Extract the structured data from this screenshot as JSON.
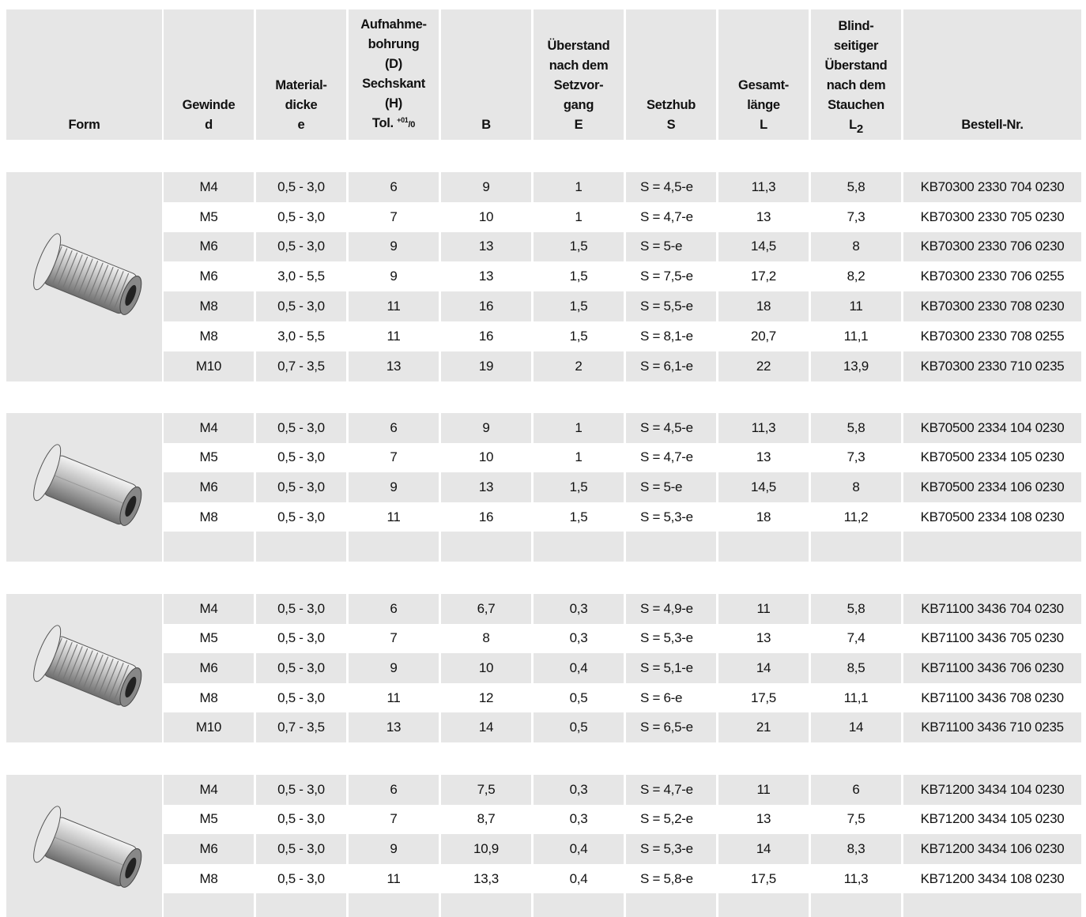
{
  "header": {
    "columns": [
      {
        "lines": [
          "Form"
        ]
      },
      {
        "lines": [
          "Gewinde",
          "d"
        ]
      },
      {
        "lines": [
          "Material-",
          "dicke",
          "e"
        ]
      },
      {
        "lines": [
          "Aufnahme-",
          "bohrung",
          "(D)",
          "Sechskant",
          "(H)",
          {
            "text": "Tol. ",
            "sup": "+01",
            "after": "/0"
          }
        ]
      },
      {
        "lines": [
          "B"
        ]
      },
      {
        "lines": [
          "Überstand",
          "nach dem",
          "Setzvor-",
          "gang",
          "E"
        ]
      },
      {
        "lines": [
          "Setzhub",
          "S"
        ]
      },
      {
        "lines": [
          "Gesamt-",
          "länge",
          "L"
        ]
      },
      {
        "lines": [
          "Blind-",
          "seitiger",
          "Überstand",
          "nach dem",
          "Stauchen",
          {
            "text": "L",
            "sub": "2"
          }
        ]
      },
      {
        "lines": [
          "Bestell-Nr."
        ]
      }
    ]
  },
  "groups": [
    {
      "rows": [
        [
          "M4",
          "0,5 - 3,0",
          "6",
          "9",
          "1",
          "S = 4,5-e",
          "11,3",
          "5,8",
          "KB70300 2330 704 0230"
        ],
        [
          "M5",
          "0,5 - 3,0",
          "7",
          "10",
          "1",
          "S = 4,7-e",
          "13",
          "7,3",
          "KB70300 2330 705 0230"
        ],
        [
          "M6",
          "0,5 - 3,0",
          "9",
          "13",
          "1,5",
          "S = 5-e",
          "14,5",
          "8",
          "KB70300 2330 706 0230"
        ],
        [
          "M6",
          "3,0 - 5,5",
          "9",
          "13",
          "1,5",
          "S = 7,5-e",
          "17,2",
          "8,2",
          "KB70300 2330 706 0255"
        ],
        [
          "M8",
          "0,5 - 3,0",
          "11",
          "16",
          "1,5",
          "S = 5,5-e",
          "18",
          "11",
          "KB70300 2330 708 0230"
        ],
        [
          "M8",
          "3,0 - 5,5",
          "11",
          "16",
          "1,5",
          "S = 8,1-e",
          "20,7",
          "11,1",
          "KB70300 2330 708 0255"
        ],
        [
          "M10",
          "0,7 - 3,5",
          "13",
          "19",
          "2",
          "S = 6,1-e",
          "22",
          "13,9",
          "KB70300 2330 710 0235"
        ]
      ]
    },
    {
      "rows": [
        [
          "M4",
          "0,5 - 3,0",
          "6",
          "9",
          "1",
          "S = 4,5-e",
          "11,3",
          "5,8",
          "KB70500 2334 104 0230"
        ],
        [
          "M5",
          "0,5 - 3,0",
          "7",
          "10",
          "1",
          "S = 4,7-e",
          "13",
          "7,3",
          "KB70500 2334 105 0230"
        ],
        [
          "M6",
          "0,5 - 3,0",
          "9",
          "13",
          "1,5",
          "S = 5-e",
          "14,5",
          "8",
          "KB70500 2334 106 0230"
        ],
        [
          "M8",
          "0,5 - 3,0",
          "11",
          "16",
          "1,5",
          "S = 5,3-e",
          "18",
          "11,2",
          "KB70500 2334 108 0230"
        ]
      ]
    },
    {
      "rows": [
        [
          "M4",
          "0,5 - 3,0",
          "6",
          "6,7",
          "0,3",
          "S = 4,9-e",
          "11",
          "5,8",
          "KB71100 3436 704 0230"
        ],
        [
          "M5",
          "0,5 - 3,0",
          "7",
          "8",
          "0,3",
          "S = 5,3-e",
          "13",
          "7,4",
          "KB71100 3436 705 0230"
        ],
        [
          "M6",
          "0,5 - 3,0",
          "9",
          "10",
          "0,4",
          "S = 5,1-e",
          "14",
          "8,5",
          "KB71100 3436 706 0230"
        ],
        [
          "M8",
          "0,5 - 3,0",
          "11",
          "12",
          "0,5",
          "S = 6-e",
          "17,5",
          "11,1",
          "KB71100 3436 708 0230"
        ],
        [
          "M10",
          "0,7 - 3,5",
          "13",
          "14",
          "0,5",
          "S = 6,5-e",
          "21",
          "14",
          "KB71100 3436 710 0235"
        ]
      ]
    },
    {
      "rows": [
        [
          "M4",
          "0,5 - 3,0",
          "6",
          "7,5",
          "0,3",
          "S = 4,7-e",
          "11",
          "6",
          "KB71200 3434 104 0230"
        ],
        [
          "M5",
          "0,5 - 3,0",
          "7",
          "8,7",
          "0,3",
          "S = 5,2-e",
          "13",
          "7,5",
          "KB71200 3434 105 0230"
        ],
        [
          "M6",
          "0,5 - 3,0",
          "9",
          "10,9",
          "0,4",
          "S = 5,3-e",
          "14",
          "8,3",
          "KB71200 3434 106 0230"
        ],
        [
          "M8",
          "0,5 - 3,0",
          "11",
          "13,3",
          "0,4",
          "S = 5,8-e",
          "17,5",
          "11,3",
          "KB71200 3434 108 0230"
        ]
      ]
    }
  ]
}
